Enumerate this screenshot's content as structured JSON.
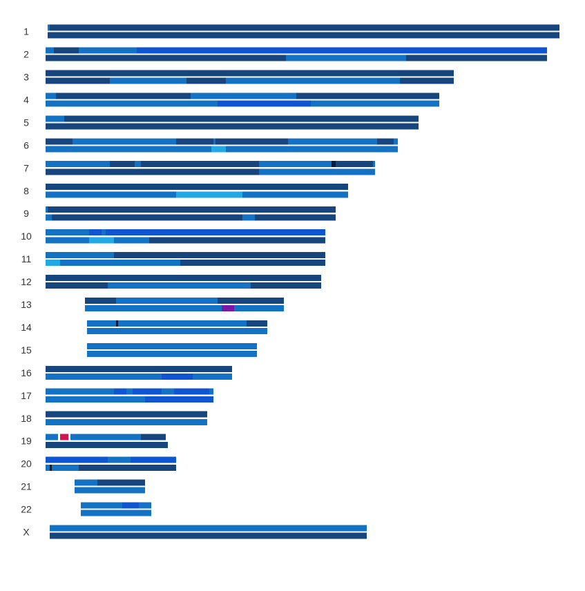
{
  "colors": {
    "dark": "#17467f",
    "mid": "#1472c4",
    "royal": "#0f55d2",
    "light": "#21a9e6",
    "black": "#0a1e3c",
    "purple": "#7a19a6",
    "crimson": "#d01553"
  },
  "chart_data": {
    "type": "chromosome-painting",
    "title": "",
    "xlabel": "",
    "ylabel": "",
    "x_unit": "Mb",
    "chromosomes": [
      {
        "label": "1",
        "start": 1,
        "end": 248,
        "top": [
          [
            1,
            2,
            "mid"
          ],
          [
            2,
            248,
            "dark"
          ]
        ],
        "bottom": [
          [
            1,
            248,
            "dark"
          ]
        ]
      },
      {
        "label": "2",
        "start": 0,
        "end": 242,
        "top": [
          [
            0,
            4,
            "mid"
          ],
          [
            4,
            16,
            "dark"
          ],
          [
            16,
            44,
            "mid"
          ],
          [
            44,
            242,
            "royal"
          ]
        ],
        "bottom": [
          [
            0,
            116,
            "dark"
          ],
          [
            116,
            174,
            "mid"
          ],
          [
            174,
            242,
            "dark"
          ]
        ]
      },
      {
        "label": "3",
        "start": 0,
        "end": 197,
        "top": [
          [
            0,
            197,
            "dark"
          ]
        ],
        "bottom": [
          [
            0,
            31,
            "dark"
          ],
          [
            31,
            40,
            "mid"
          ],
          [
            40,
            60,
            "mid"
          ],
          [
            60,
            68,
            "mid"
          ],
          [
            68,
            87,
            "dark"
          ],
          [
            87,
            171,
            "mid"
          ],
          [
            171,
            197,
            "dark"
          ]
        ]
      },
      {
        "label": "4",
        "start": 0,
        "end": 190,
        "top": [
          [
            0,
            5,
            "mid"
          ],
          [
            5,
            70,
            "dark"
          ],
          [
            70,
            121,
            "mid"
          ],
          [
            121,
            190,
            "dark"
          ]
        ],
        "bottom": [
          [
            0,
            83,
            "mid"
          ],
          [
            83,
            128,
            "royal"
          ],
          [
            128,
            190,
            "mid"
          ]
        ]
      },
      {
        "label": "5",
        "start": 0,
        "end": 180,
        "top": [
          [
            0,
            9,
            "mid"
          ],
          [
            9,
            180,
            "dark"
          ]
        ],
        "bottom": [
          [
            0,
            180,
            "dark"
          ]
        ]
      },
      {
        "label": "6",
        "start": 0,
        "end": 170,
        "top": [
          [
            0,
            13,
            "dark"
          ],
          [
            13,
            63,
            "mid"
          ],
          [
            63,
            81,
            "dark"
          ],
          [
            81,
            82,
            "mid"
          ],
          [
            82,
            117,
            "dark"
          ],
          [
            117,
            160,
            "mid"
          ],
          [
            160,
            168,
            "dark"
          ],
          [
            168,
            170,
            "mid"
          ]
        ],
        "bottom": [
          [
            0,
            4,
            "mid"
          ],
          [
            4,
            8,
            "mid"
          ],
          [
            8,
            52,
            "mid"
          ],
          [
            52,
            80,
            "mid"
          ],
          [
            80,
            84,
            "light"
          ],
          [
            84,
            87,
            "light"
          ],
          [
            87,
            97,
            "mid"
          ],
          [
            97,
            151,
            "mid"
          ],
          [
            151,
            166,
            "mid"
          ],
          [
            166,
            170,
            "mid"
          ]
        ]
      },
      {
        "label": "7",
        "start": 0,
        "end": 159,
        "top": [
          [
            0,
            31,
            "mid"
          ],
          [
            31,
            43,
            "dark"
          ],
          [
            43,
            46,
            "mid"
          ],
          [
            46,
            103,
            "dark"
          ],
          [
            103,
            138,
            "mid"
          ],
          [
            138,
            140,
            "black"
          ],
          [
            140,
            158,
            "dark"
          ],
          [
            158,
            159,
            "mid"
          ]
        ],
        "bottom": [
          [
            0,
            103,
            "dark"
          ],
          [
            103,
            159,
            "mid"
          ]
        ]
      },
      {
        "label": "8",
        "start": 0,
        "end": 146,
        "top": [
          [
            0,
            146,
            "dark"
          ]
        ],
        "bottom": [
          [
            0,
            60,
            "mid"
          ],
          [
            60,
            63,
            "mid"
          ],
          [
            63,
            70,
            "light"
          ],
          [
            70,
            95,
            "light"
          ],
          [
            95,
            146,
            "mid"
          ]
        ]
      },
      {
        "label": "9",
        "start": 0,
        "end": 140,
        "top": [
          [
            0,
            1,
            "mid"
          ],
          [
            1,
            140,
            "dark"
          ]
        ],
        "bottom": [
          [
            0,
            3,
            "mid"
          ],
          [
            3,
            95,
            "dark"
          ],
          [
            95,
            101,
            "mid"
          ],
          [
            101,
            140,
            "dark"
          ]
        ]
      },
      {
        "label": "10",
        "start": 0,
        "end": 135,
        "top": [
          [
            0,
            21,
            "mid"
          ],
          [
            21,
            27,
            "royal"
          ],
          [
            27,
            29,
            "mid"
          ],
          [
            29,
            135,
            "royal"
          ]
        ],
        "bottom": [
          [
            0,
            21,
            "mid"
          ],
          [
            21,
            33,
            "light"
          ],
          [
            33,
            50,
            "mid"
          ],
          [
            50,
            57,
            "dark"
          ],
          [
            57,
            135,
            "dark"
          ]
        ]
      },
      {
        "label": "11",
        "start": 0,
        "end": 135,
        "top": [
          [
            0,
            33,
            "mid"
          ],
          [
            33,
            135,
            "dark"
          ]
        ],
        "bottom": [
          [
            0,
            7,
            "light"
          ],
          [
            7,
            12,
            "mid"
          ],
          [
            12,
            65,
            "mid"
          ],
          [
            65,
            135,
            "dark"
          ]
        ]
      },
      {
        "label": "12",
        "start": 0,
        "end": 133,
        "top": [
          [
            0,
            133,
            "dark"
          ]
        ],
        "bottom": [
          [
            0,
            30,
            "dark"
          ],
          [
            30,
            99,
            "mid"
          ],
          [
            99,
            133,
            "dark"
          ]
        ]
      },
      {
        "label": "13",
        "start": 19,
        "end": 115,
        "top": [
          [
            19,
            34,
            "dark"
          ],
          [
            34,
            83,
            "mid"
          ],
          [
            83,
            115,
            "dark"
          ]
        ],
        "bottom": [
          [
            19,
            84,
            "mid"
          ],
          [
            84,
            85,
            "mid"
          ],
          [
            85,
            91,
            "purple"
          ],
          [
            91,
            92,
            "mid"
          ],
          [
            92,
            115,
            "mid"
          ]
        ]
      },
      {
        "label": "14",
        "start": 20,
        "end": 107,
        "top": [
          [
            20,
            34,
            "mid"
          ],
          [
            34,
            35,
            "black"
          ],
          [
            35,
            97,
            "mid"
          ],
          [
            97,
            107,
            "dark"
          ]
        ],
        "bottom": [
          [
            20,
            107,
            "mid"
          ]
        ]
      },
      {
        "label": "15",
        "start": 20,
        "end": 102,
        "top": [
          [
            20,
            102,
            "mid"
          ]
        ],
        "bottom": [
          [
            20,
            102,
            "mid"
          ]
        ]
      },
      {
        "label": "16",
        "start": 0,
        "end": 90,
        "top": [
          [
            0,
            90,
            "dark"
          ]
        ],
        "bottom": [
          [
            0,
            17,
            "mid"
          ],
          [
            17,
            56,
            "mid"
          ],
          [
            56,
            71,
            "royal"
          ],
          [
            71,
            90,
            "mid"
          ]
        ]
      },
      {
        "label": "17",
        "start": 0,
        "end": 81,
        "top": [
          [
            0,
            33,
            "mid"
          ],
          [
            33,
            39,
            "royal"
          ],
          [
            39,
            42,
            "mid"
          ],
          [
            42,
            47,
            "royal"
          ],
          [
            47,
            56,
            "royal"
          ],
          [
            56,
            62,
            "mid"
          ],
          [
            62,
            79,
            "royal"
          ],
          [
            79,
            81,
            "mid"
          ]
        ],
        "bottom": [
          [
            0,
            48,
            "mid"
          ],
          [
            48,
            81,
            "royal"
          ]
        ]
      },
      {
        "label": "18",
        "start": 0,
        "end": 78,
        "top": [
          [
            0,
            78,
            "dark"
          ]
        ],
        "bottom": [
          [
            0,
            61,
            "mid"
          ],
          [
            61,
            62,
            "mid"
          ],
          [
            62,
            78,
            "mid"
          ]
        ]
      },
      {
        "label": "19",
        "start": 0,
        "end": 59,
        "top": [
          [
            0,
            3,
            "mid"
          ],
          [
            3,
            6,
            "mid"
          ],
          [
            6,
            7,
            "white"
          ],
          [
            7,
            11,
            "crimson"
          ],
          [
            11,
            12,
            "white"
          ],
          [
            12,
            46,
            "mid"
          ],
          [
            46,
            58,
            "dark"
          ]
        ],
        "bottom": [
          [
            0,
            59,
            "dark"
          ]
        ]
      },
      {
        "label": "20",
        "start": 0,
        "end": 63,
        "top": [
          [
            0,
            30,
            "royal"
          ],
          [
            30,
            41,
            "mid"
          ],
          [
            41,
            63,
            "royal"
          ]
        ],
        "bottom": [
          [
            0,
            2,
            "mid"
          ],
          [
            2,
            3,
            "black"
          ],
          [
            3,
            4,
            "mid"
          ],
          [
            4,
            16,
            "mid"
          ],
          [
            16,
            63,
            "dark"
          ]
        ]
      },
      {
        "label": "21",
        "start": 14,
        "end": 48,
        "top": [
          [
            14,
            25,
            "mid"
          ],
          [
            25,
            48,
            "dark"
          ]
        ],
        "bottom": [
          [
            14,
            48,
            "mid"
          ]
        ]
      },
      {
        "label": "22",
        "start": 17,
        "end": 51,
        "top": [
          [
            17,
            37,
            "mid"
          ],
          [
            37,
            45,
            "royal"
          ],
          [
            45,
            46,
            "mid"
          ],
          [
            46,
            51,
            "mid"
          ]
        ],
        "bottom": [
          [
            17,
            51,
            "mid"
          ]
        ]
      },
      {
        "label": "X",
        "start": 2,
        "end": 155,
        "top": [
          [
            2,
            155,
            "mid"
          ]
        ],
        "bottom": [
          [
            2,
            155,
            "dark"
          ]
        ]
      }
    ]
  }
}
